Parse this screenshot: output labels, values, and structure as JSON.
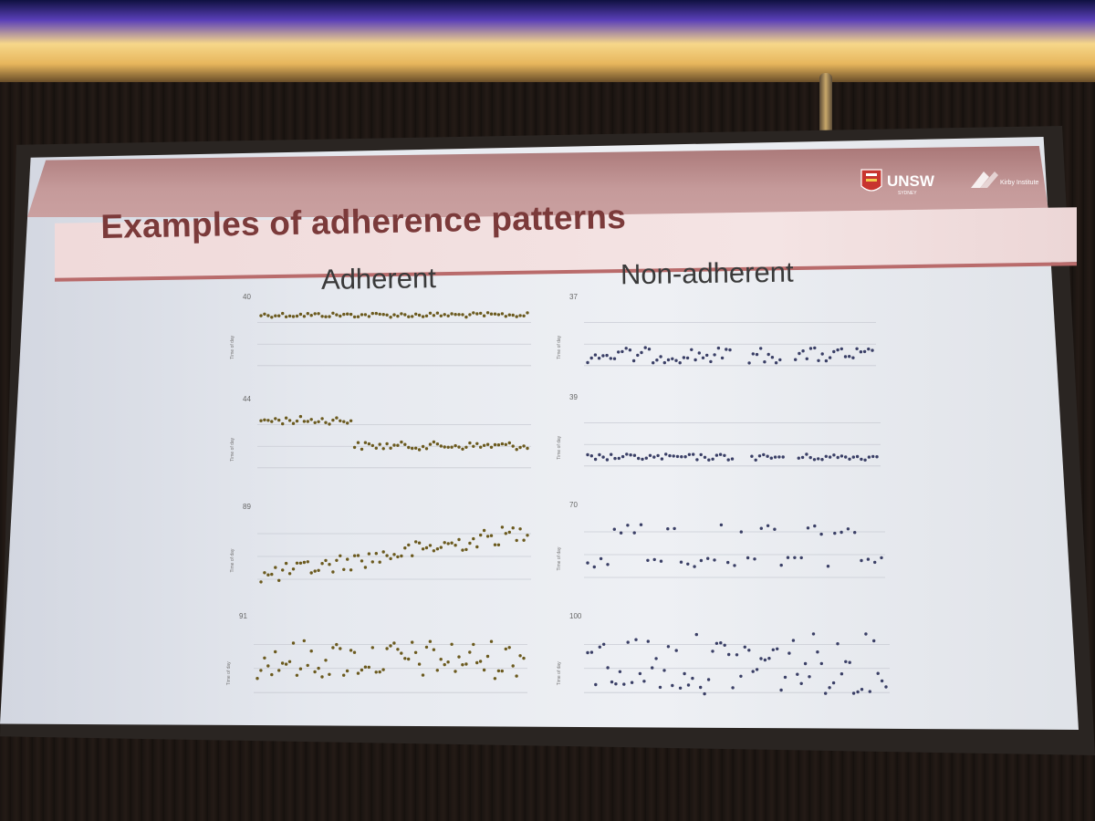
{
  "slide": {
    "title": "Examples of adherence patterns",
    "columns": {
      "left": "Adherent",
      "right": "Non-adherent"
    },
    "logos": {
      "unsw": "UNSW",
      "unsw_sub": "SYDNEY",
      "kirby": "Kirby Institute"
    },
    "colors": {
      "header_maroon": "#a97777",
      "title_text": "#7b3a3a",
      "adherent_dots": "#6b5a1e",
      "nonadherent_dots": "#3a3f66"
    },
    "ylabel": "Time of day"
  },
  "plots": [
    {
      "id": "40",
      "column": "left",
      "pattern": "consistent-high"
    },
    {
      "id": "44",
      "column": "left",
      "pattern": "step-down"
    },
    {
      "id": "89",
      "column": "left",
      "pattern": "gradual-rise"
    },
    {
      "id": "91",
      "column": "left",
      "pattern": "scattered-mid"
    },
    {
      "id": "37",
      "column": "right",
      "pattern": "gappy-low"
    },
    {
      "id": "39",
      "column": "right",
      "pattern": "low-with-gaps"
    },
    {
      "id": "70",
      "column": "right",
      "pattern": "bimodal-sparse"
    },
    {
      "id": "100",
      "column": "right",
      "pattern": "highly-scattered"
    }
  ]
}
